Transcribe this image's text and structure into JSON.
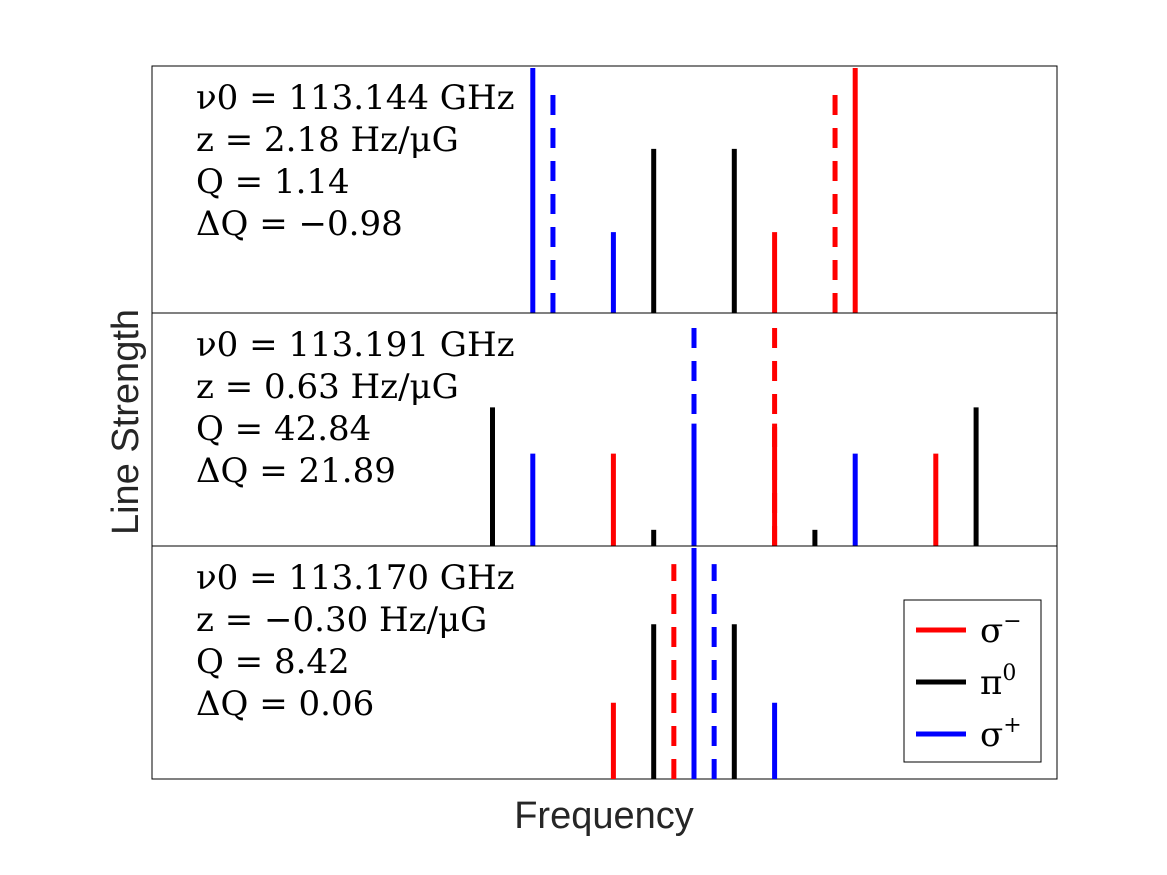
{
  "chart_data": {
    "type": "stem",
    "xlabel": "Frequency",
    "ylabel": "Line Strength",
    "ylim": [
      0,
      1
    ],
    "colors": {
      "sigma_minus": "#ff0000",
      "pi0": "#000000",
      "sigma_plus": "#0000ff"
    },
    "legend": {
      "position": "bottom-right of bottom panel",
      "entries": [
        {
          "key": "sigma_minus",
          "symbol": "σ",
          "sup": "−"
        },
        {
          "key": "pi0",
          "symbol": "π",
          "sup": "0"
        },
        {
          "key": "sigma_plus",
          "symbol": "σ",
          "sup": "+"
        }
      ]
    },
    "panels": [
      {
        "annotations": [
          "ν0 = 113.144 GHz",
          "z = 2.18 Hz/μG",
          "Q = 1.14",
          "ΔQ = −0.98"
        ],
        "lines": [
          {
            "x": -4.0,
            "h": 1.0,
            "type": "sigma_plus",
            "style": "solid"
          },
          {
            "x": -3.5,
            "h": 0.93,
            "type": "sigma_plus",
            "style": "dashed"
          },
          {
            "x": -2.0,
            "h": 0.33,
            "type": "sigma_plus",
            "style": "solid"
          },
          {
            "x": -1.0,
            "h": 0.67,
            "type": "pi0",
            "style": "solid"
          },
          {
            "x": 1.0,
            "h": 0.67,
            "type": "pi0",
            "style": "solid"
          },
          {
            "x": 2.0,
            "h": 0.33,
            "type": "sigma_minus",
            "style": "solid"
          },
          {
            "x": 3.5,
            "h": 0.93,
            "type": "sigma_minus",
            "style": "dashed"
          },
          {
            "x": 4.0,
            "h": 1.0,
            "type": "sigma_minus",
            "style": "solid"
          }
        ]
      },
      {
        "annotations": [
          "ν0 = 113.191 GHz",
          "z = 0.63 Hz/μG",
          "Q = 42.84",
          "ΔQ = 21.89"
        ],
        "lines": [
          {
            "x": -5.0,
            "h": 0.6,
            "type": "pi0",
            "style": "solid"
          },
          {
            "x": -4.0,
            "h": 0.4,
            "type": "sigma_plus",
            "style": "solid"
          },
          {
            "x": -2.0,
            "h": 0.4,
            "type": "sigma_minus",
            "style": "solid"
          },
          {
            "x": -1.0,
            "h": 0.07,
            "type": "pi0",
            "style": "solid"
          },
          {
            "x": 0.0,
            "h": 0.53,
            "type": "sigma_plus",
            "style": "solid"
          },
          {
            "x": 0.0,
            "h": 1.0,
            "type": "sigma_plus",
            "style": "dashed"
          },
          {
            "x": 2.0,
            "h": 0.53,
            "type": "sigma_minus",
            "style": "solid"
          },
          {
            "x": 2.0,
            "h": 1.0,
            "type": "sigma_minus",
            "style": "dashed"
          },
          {
            "x": 3.0,
            "h": 0.07,
            "type": "pi0",
            "style": "solid"
          },
          {
            "x": 4.0,
            "h": 0.4,
            "type": "sigma_plus",
            "style": "solid"
          },
          {
            "x": 6.0,
            "h": 0.4,
            "type": "sigma_minus",
            "style": "solid"
          },
          {
            "x": 7.0,
            "h": 0.6,
            "type": "pi0",
            "style": "solid"
          }
        ]
      },
      {
        "annotations": [
          "ν0 = 113.170 GHz",
          "z = −0.30 Hz/μG",
          "Q = 8.42",
          "ΔQ = 0.06"
        ],
        "lines": [
          {
            "x": -2.0,
            "h": 0.33,
            "type": "sigma_minus",
            "style": "solid"
          },
          {
            "x": -1.0,
            "h": 0.67,
            "type": "pi0",
            "style": "solid"
          },
          {
            "x": -0.5,
            "h": 0.93,
            "type": "sigma_minus",
            "style": "dashed"
          },
          {
            "x": 0.0,
            "h": 1.0,
            "type": "sigma_plus",
            "style": "solid"
          },
          {
            "x": 0.5,
            "h": 0.93,
            "type": "sigma_plus",
            "style": "dashed"
          },
          {
            "x": 1.0,
            "h": 0.67,
            "type": "pi0",
            "style": "solid"
          },
          {
            "x": 2.0,
            "h": 0.33,
            "type": "sigma_plus",
            "style": "solid"
          }
        ]
      }
    ]
  }
}
